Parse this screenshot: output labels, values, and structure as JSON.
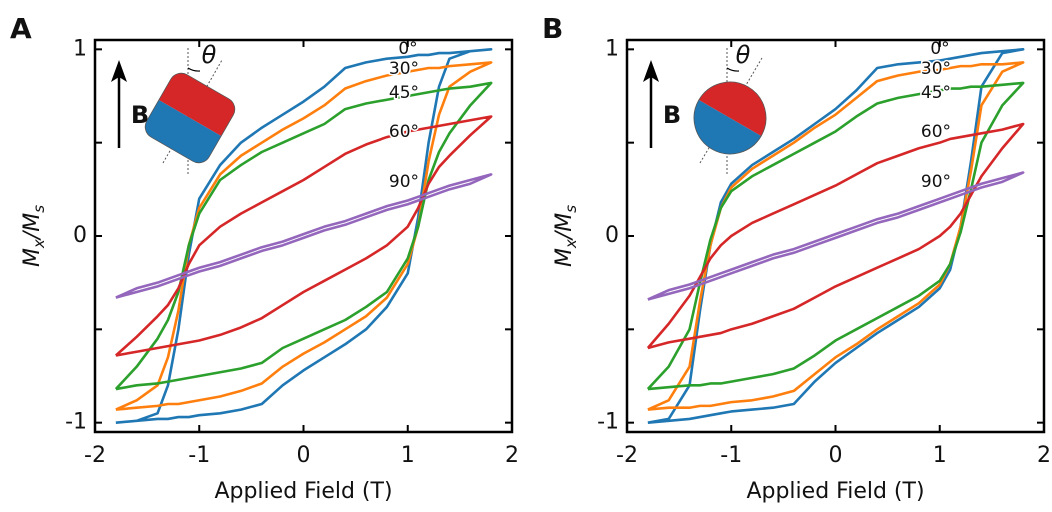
{
  "chart_data": [
    {
      "type": "line",
      "panel_label": "A",
      "x_label": "Applied Field (T)",
      "y_label": [
        "M",
        "x",
        "/M",
        "s"
      ],
      "field_label": "B",
      "angle_symbol": "θ",
      "x": [
        -1.8,
        -1.6,
        -1.4,
        -1.3,
        -1.2,
        -1.1,
        -1.0,
        -0.8,
        -0.6,
        -0.4,
        -0.2,
        0,
        0.2,
        0.4,
        0.6,
        0.8,
        1.0,
        1.1,
        1.2,
        1.3,
        1.4,
        1.6,
        1.8,
        1.6,
        1.4,
        1.3,
        1.2,
        1.1,
        1.0,
        0.8,
        0.6,
        0.4,
        0.2,
        0,
        -0.2,
        -0.4,
        -0.6,
        -0.8,
        -1.0,
        -1.1,
        -1.2,
        -1.3,
        -1.4,
        -1.6,
        -1.8
      ],
      "series": [
        {
          "name": "0°",
          "color": "#1f77b4",
          "values": [
            -1.0,
            -0.99,
            -0.98,
            -0.98,
            -0.97,
            -0.97,
            -0.96,
            -0.95,
            -0.93,
            -0.9,
            -0.8,
            -0.72,
            -0.65,
            -0.58,
            -0.5,
            -0.38,
            -0.2,
            0.1,
            0.5,
            0.8,
            0.95,
            0.99,
            1.0,
            0.99,
            0.98,
            0.98,
            0.97,
            0.97,
            0.96,
            0.95,
            0.93,
            0.9,
            0.8,
            0.72,
            0.65,
            0.58,
            0.5,
            0.38,
            0.2,
            -0.1,
            -0.5,
            -0.8,
            -0.95,
            -0.99,
            -1.0
          ]
        },
        {
          "name": "30°",
          "color": "#ff7f0e",
          "values": [
            -0.93,
            -0.92,
            -0.91,
            -0.9,
            -0.9,
            -0.89,
            -0.88,
            -0.86,
            -0.83,
            -0.79,
            -0.7,
            -0.63,
            -0.57,
            -0.5,
            -0.43,
            -0.33,
            -0.15,
            0.05,
            0.4,
            0.65,
            0.8,
            0.88,
            0.93,
            0.92,
            0.91,
            0.9,
            0.9,
            0.89,
            0.88,
            0.86,
            0.83,
            0.79,
            0.7,
            0.63,
            0.57,
            0.5,
            0.43,
            0.33,
            0.15,
            -0.05,
            -0.4,
            -0.65,
            -0.8,
            -0.88,
            -0.93
          ]
        },
        {
          "name": "45°",
          "color": "#2ca02c",
          "values": [
            -0.82,
            -0.8,
            -0.79,
            -0.78,
            -0.77,
            -0.76,
            -0.75,
            -0.73,
            -0.71,
            -0.68,
            -0.6,
            -0.55,
            -0.5,
            -0.45,
            -0.38,
            -0.3,
            -0.12,
            0.05,
            0.3,
            0.45,
            0.55,
            0.7,
            0.82,
            0.8,
            0.79,
            0.78,
            0.77,
            0.76,
            0.75,
            0.73,
            0.71,
            0.68,
            0.6,
            0.55,
            0.5,
            0.45,
            0.38,
            0.3,
            0.12,
            -0.05,
            -0.3,
            -0.45,
            -0.55,
            -0.7,
            -0.82
          ]
        },
        {
          "name": "60°",
          "color": "#d62728",
          "values": [
            -0.64,
            -0.62,
            -0.6,
            -0.59,
            -0.58,
            -0.57,
            -0.56,
            -0.53,
            -0.49,
            -0.44,
            -0.37,
            -0.3,
            -0.24,
            -0.18,
            -0.12,
            -0.05,
            0.05,
            0.15,
            0.28,
            0.37,
            0.43,
            0.54,
            0.64,
            0.62,
            0.6,
            0.59,
            0.58,
            0.57,
            0.56,
            0.53,
            0.49,
            0.44,
            0.37,
            0.3,
            0.24,
            0.18,
            0.12,
            0.05,
            -0.05,
            -0.15,
            -0.28,
            -0.37,
            -0.43,
            -0.54,
            -0.64
          ]
        },
        {
          "name": "90°",
          "color": "#9467bd",
          "values": [
            -0.33,
            -0.3,
            -0.27,
            -0.25,
            -0.23,
            -0.21,
            -0.19,
            -0.16,
            -0.12,
            -0.08,
            -0.05,
            -0.01,
            0.03,
            0.06,
            0.1,
            0.14,
            0.17,
            0.19,
            0.21,
            0.23,
            0.25,
            0.28,
            0.33,
            0.3,
            0.27,
            0.25,
            0.23,
            0.21,
            0.19,
            0.16,
            0.12,
            0.08,
            0.05,
            0.01,
            -0.03,
            -0.06,
            -0.1,
            -0.14,
            -0.17,
            -0.19,
            -0.21,
            -0.23,
            -0.25,
            -0.28,
            -0.33
          ]
        }
      ],
      "xlim": [
        -2,
        2
      ],
      "ylim": [
        -1.05,
        1.05
      ],
      "xticks": [
        -2,
        -1,
        0,
        1,
        2
      ],
      "yticks": [
        -1,
        0,
        1
      ],
      "minor_yticks": [
        -0.5,
        0.5
      ]
    },
    {
      "type": "line",
      "panel_label": "B",
      "x_label": "Applied Field (T)",
      "y_label": [
        "M",
        "x",
        "/M",
        "s"
      ],
      "field_label": "B",
      "angle_symbol": "θ",
      "x": [
        -1.8,
        -1.6,
        -1.4,
        -1.3,
        -1.2,
        -1.1,
        -1.0,
        -0.8,
        -0.6,
        -0.4,
        -0.2,
        0,
        0.2,
        0.4,
        0.6,
        0.8,
        1.0,
        1.1,
        1.2,
        1.3,
        1.4,
        1.6,
        1.8,
        1.6,
        1.4,
        1.3,
        1.2,
        1.1,
        1.0,
        0.8,
        0.6,
        0.4,
        0.2,
        0,
        -0.2,
        -0.4,
        -0.6,
        -0.8,
        -1.0,
        -1.1,
        -1.2,
        -1.3,
        -1.4,
        -1.6,
        -1.8
      ],
      "series": [
        {
          "name": "0°",
          "color": "#1f77b4",
          "values": [
            -1.0,
            -0.99,
            -0.98,
            -0.97,
            -0.96,
            -0.95,
            -0.94,
            -0.93,
            -0.92,
            -0.9,
            -0.78,
            -0.68,
            -0.6,
            -0.52,
            -0.45,
            -0.38,
            -0.28,
            -0.18,
            0.05,
            0.4,
            0.8,
            0.98,
            1.0,
            0.99,
            0.98,
            0.97,
            0.96,
            0.95,
            0.94,
            0.93,
            0.92,
            0.9,
            0.78,
            0.68,
            0.6,
            0.52,
            0.45,
            0.38,
            0.28,
            0.18,
            -0.05,
            -0.4,
            -0.8,
            -0.98,
            -1.0
          ]
        },
        {
          "name": "30°",
          "color": "#ff7f0e",
          "values": [
            -0.93,
            -0.92,
            -0.92,
            -0.91,
            -0.91,
            -0.9,
            -0.89,
            -0.88,
            -0.86,
            -0.83,
            -0.74,
            -0.65,
            -0.58,
            -0.5,
            -0.43,
            -0.36,
            -0.26,
            -0.15,
            0.05,
            0.35,
            0.7,
            0.88,
            0.93,
            0.92,
            0.92,
            0.91,
            0.91,
            0.9,
            0.89,
            0.88,
            0.86,
            0.83,
            0.74,
            0.65,
            0.58,
            0.5,
            0.43,
            0.36,
            0.26,
            0.15,
            -0.05,
            -0.35,
            -0.7,
            -0.88,
            -0.93
          ]
        },
        {
          "name": "45°",
          "color": "#2ca02c",
          "values": [
            -0.82,
            -0.81,
            -0.8,
            -0.8,
            -0.79,
            -0.79,
            -0.78,
            -0.76,
            -0.74,
            -0.71,
            -0.64,
            -0.56,
            -0.5,
            -0.44,
            -0.38,
            -0.32,
            -0.24,
            -0.15,
            0.02,
            0.25,
            0.5,
            0.7,
            0.82,
            0.81,
            0.8,
            0.8,
            0.79,
            0.79,
            0.78,
            0.76,
            0.74,
            0.71,
            0.64,
            0.56,
            0.5,
            0.44,
            0.38,
            0.32,
            0.24,
            0.15,
            -0.02,
            -0.25,
            -0.5,
            -0.7,
            -0.82
          ]
        },
        {
          "name": "60°",
          "color": "#d62728",
          "values": [
            -0.6,
            -0.57,
            -0.55,
            -0.54,
            -0.53,
            -0.52,
            -0.5,
            -0.47,
            -0.43,
            -0.39,
            -0.33,
            -0.27,
            -0.22,
            -0.17,
            -0.12,
            -0.07,
            0.0,
            0.05,
            0.12,
            0.22,
            0.32,
            0.47,
            0.6,
            0.57,
            0.55,
            0.54,
            0.53,
            0.52,
            0.5,
            0.47,
            0.43,
            0.39,
            0.33,
            0.27,
            0.22,
            0.17,
            0.12,
            0.07,
            0.0,
            -0.05,
            -0.12,
            -0.22,
            -0.32,
            -0.47,
            -0.6
          ]
        },
        {
          "name": "90°",
          "color": "#9467bd",
          "values": [
            -0.34,
            -0.31,
            -0.28,
            -0.26,
            -0.24,
            -0.22,
            -0.2,
            -0.16,
            -0.12,
            -0.09,
            -0.05,
            -0.01,
            0.03,
            0.07,
            0.1,
            0.14,
            0.18,
            0.2,
            0.22,
            0.24,
            0.26,
            0.29,
            0.34,
            0.31,
            0.28,
            0.26,
            0.24,
            0.22,
            0.2,
            0.16,
            0.12,
            0.09,
            0.05,
            0.01,
            -0.03,
            -0.07,
            -0.1,
            -0.14,
            -0.18,
            -0.2,
            -0.22,
            -0.24,
            -0.26,
            -0.29,
            -0.34
          ]
        }
      ],
      "xlim": [
        -2,
        2
      ],
      "ylim": [
        -1.05,
        1.05
      ],
      "xticks": [
        -2,
        -1,
        0,
        1,
        2
      ],
      "yticks": [
        -1,
        0,
        1
      ],
      "minor_yticks": [
        -0.5,
        0.5
      ]
    }
  ]
}
